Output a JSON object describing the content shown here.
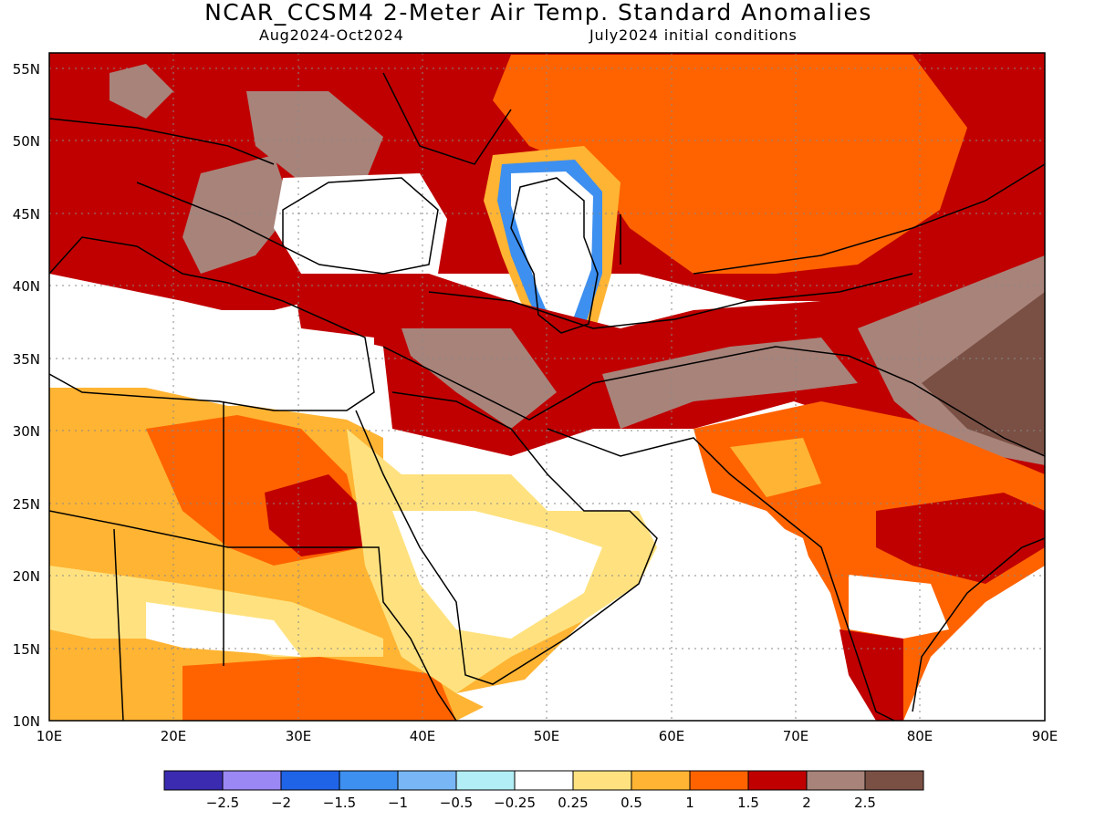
{
  "title": "NCAR_CCSM4 2-Meter Air Temp. Standard Anomalies",
  "subtitle_left": "Aug2024-Oct2024",
  "subtitle_right": "July2024 initial conditions",
  "map": {
    "lon_range": [
      10,
      90
    ],
    "lat_range": [
      10,
      56
    ],
    "lon_ticks": [
      "10E",
      "20E",
      "30E",
      "40E",
      "50E",
      "60E",
      "70E",
      "80E",
      "90E"
    ],
    "lat_ticks": [
      "55N",
      "50N",
      "45N",
      "40N",
      "35N",
      "30N",
      "25N",
      "20N",
      "15N",
      "10N"
    ]
  },
  "colorbar": {
    "colors": [
      "#3a2bb0",
      "#9c88f4",
      "#1f63e6",
      "#3d8ff0",
      "#78b6f5",
      "#b2eef5",
      "#ffffff",
      "#ffe27f",
      "#ffb433",
      "#ff6300",
      "#c00000",
      "#a8837a",
      "#7a5044"
    ],
    "labels": [
      "-2.5",
      "-2",
      "-1.5",
      "-1",
      "-0.5",
      "-0.25",
      "0.25",
      "0.5",
      "1",
      "1.5",
      "2",
      "2.5"
    ]
  }
}
